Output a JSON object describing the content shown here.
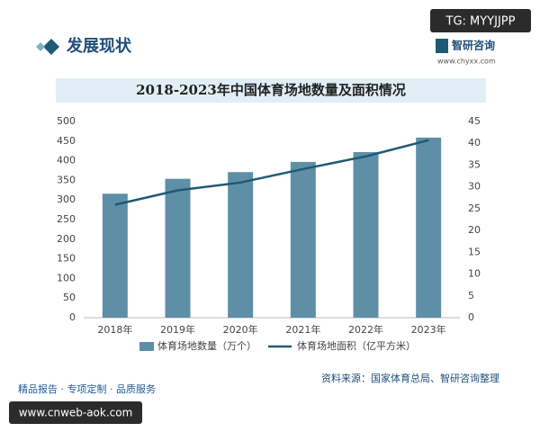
{
  "page": {
    "badge": "TG: MYYJJPP",
    "section_title": "发展现状",
    "logo_name": "智研咨询",
    "logo_url": "www.chyxx.com",
    "footer_slogan": "精品报告 · 专项定制 · 品质服务",
    "footer_url": "www.cnweb-aok.com"
  },
  "chart_data": {
    "type": "bar_line",
    "title": "2018-2023年中国体育场地数量及面积情况",
    "categories": [
      "2018年",
      "2019年",
      "2020年",
      "2021年",
      "2022年",
      "2023年"
    ],
    "series": [
      {
        "name": "体育场地数量（万个）",
        "type": "bar",
        "color": "#5f8fa7",
        "values": [
          316,
          354,
          371,
          397,
          422,
          459
        ]
      },
      {
        "name": "体育场地面积（亿平方米）",
        "type": "line",
        "axis": "y2",
        "color": "#1f5a75",
        "values": [
          25.9,
          29.2,
          31.0,
          34.1,
          37.0,
          40.7
        ]
      }
    ],
    "ylim": [
      0,
      500
    ],
    "yticks": [
      0,
      50,
      100,
      150,
      200,
      250,
      300,
      350,
      400,
      450,
      500
    ],
    "y2lim": [
      0,
      45
    ],
    "y2ticks": [
      0,
      5,
      10,
      15,
      20,
      25,
      30,
      35,
      40,
      45
    ],
    "grid": false,
    "source": "资料来源：国家体育总局、智研咨询整理"
  }
}
